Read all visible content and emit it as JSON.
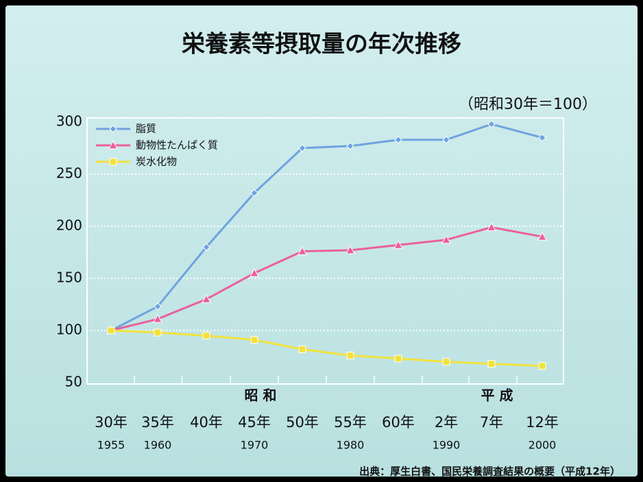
{
  "chart_data": {
    "type": "line",
    "title": "栄養素等摂取量の年次推移",
    "subtitle": "（昭和30年＝100）",
    "categories": [
      "30年",
      "35年",
      "40年",
      "45年",
      "50年",
      "55年",
      "60年",
      "2年",
      "7年",
      "12年"
    ],
    "years": [
      "1955",
      "1960",
      null,
      "1970",
      null,
      "1980",
      null,
      "1990",
      null,
      "2000"
    ],
    "eras": [
      "昭 和",
      "平 成"
    ],
    "series": [
      {
        "name": "脂質",
        "color": "#6fa3e0",
        "marker": "diamond",
        "values": [
          100,
          123,
          180,
          232,
          275,
          277,
          283,
          283,
          298,
          285
        ]
      },
      {
        "name": "動物性たんぱく質",
        "color": "#ec5f9c",
        "marker": "triangle",
        "values": [
          100,
          111,
          130,
          155,
          176,
          177,
          182,
          187,
          199,
          190
        ]
      },
      {
        "name": "炭水化物",
        "color": "#f2e23c",
        "marker": "square",
        "values": [
          100,
          98,
          95,
          91,
          82,
          76,
          73,
          70,
          68,
          66
        ]
      }
    ],
    "ylim": [
      50,
      300
    ],
    "yticks": [
      50,
      100,
      150,
      200,
      250,
      300
    ],
    "grid": true,
    "source": "出典：厚生白書、国民栄養調査結果の概要（平成12年）"
  }
}
